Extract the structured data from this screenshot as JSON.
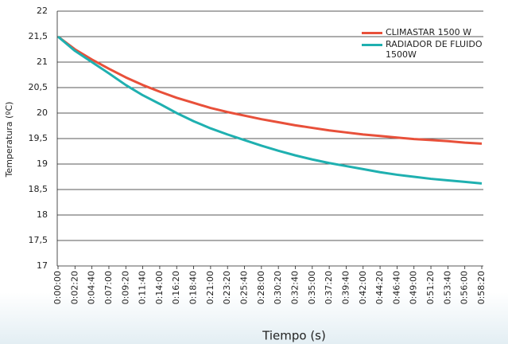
{
  "chart_data": {
    "type": "line",
    "x_label": "Tiempo (s)",
    "y_label": "Temperatura (ºC)",
    "categories": [
      "0:00:00",
      "0:02:20",
      "0:04:40",
      "0:07:00",
      "0:09:20",
      "0:11:40",
      "0:14:00",
      "0:16:20",
      "0:18:40",
      "0:21:00",
      "0:23:20",
      "0:25:40",
      "0:28:00",
      "0:30:20",
      "0:32:40",
      "0:35:00",
      "0:37:20",
      "0:39:40",
      "0:42:00",
      "0:44:20",
      "0:46:40",
      "0:49:00",
      "0:51:20",
      "0:53:40",
      "0:56:00",
      "0:58:20"
    ],
    "series": [
      {
        "name": "CLIMASTAR 1500 W",
        "color": "#e8503a",
        "values": [
          21.5,
          21.25,
          21.05,
          20.87,
          20.7,
          20.55,
          20.42,
          20.3,
          20.2,
          20.1,
          20.02,
          19.95,
          19.88,
          19.82,
          19.76,
          19.71,
          19.66,
          19.62,
          19.58,
          19.55,
          19.52,
          19.49,
          19.47,
          19.45,
          19.42,
          19.4
        ]
      },
      {
        "name": "RADIADOR DE FLUIDO 1500W",
        "color": "#1fb0b0",
        "values": [
          21.5,
          21.22,
          21.0,
          20.78,
          20.55,
          20.35,
          20.18,
          20.0,
          19.84,
          19.7,
          19.58,
          19.47,
          19.36,
          19.26,
          19.17,
          19.09,
          19.02,
          18.96,
          18.9,
          18.84,
          18.79,
          18.75,
          18.71,
          18.68,
          18.65,
          18.62
        ]
      }
    ],
    "ylim": [
      17,
      22
    ],
    "yticks": [
      17,
      {
        "value": 17.5,
        "label": "17,5"
      },
      18,
      {
        "value": 18.5,
        "label": "18,5"
      },
      19,
      {
        "value": 19.5,
        "label": "19,5"
      },
      20,
      {
        "value": 20.5,
        "label": "20,5"
      },
      21,
      {
        "value": 21.5,
        "label": "21,5"
      },
      22
    ],
    "grid": true
  }
}
